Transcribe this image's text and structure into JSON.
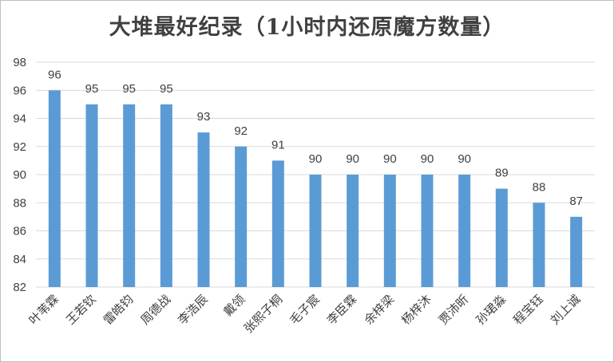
{
  "chart_data": {
    "type": "bar",
    "title": "大堆最好纪录（1小时内还原魔方数量）",
    "categories": [
      "叶苇霖",
      "王若钦",
      "雷皓钧",
      "周德战",
      "李浩辰",
      "戴领",
      "张熙子桐",
      "毛子宸",
      "李臣霖",
      "余梓梁",
      "杨梓沐",
      "贾沛昕",
      "孙珺淼",
      "程宝钰",
      "刘上诚"
    ],
    "values": [
      96,
      95,
      95,
      95,
      93,
      92,
      91,
      90,
      90,
      90,
      90,
      90,
      89,
      88,
      87
    ],
    "ylim": [
      82,
      98
    ],
    "yticks": [
      82,
      84,
      86,
      88,
      90,
      92,
      94,
      96,
      98
    ],
    "xlabel": "",
    "ylabel": "",
    "grid": true,
    "data_labels": true,
    "bar_color": "#5b9bd5",
    "grid_color": "#d9d9d9"
  }
}
